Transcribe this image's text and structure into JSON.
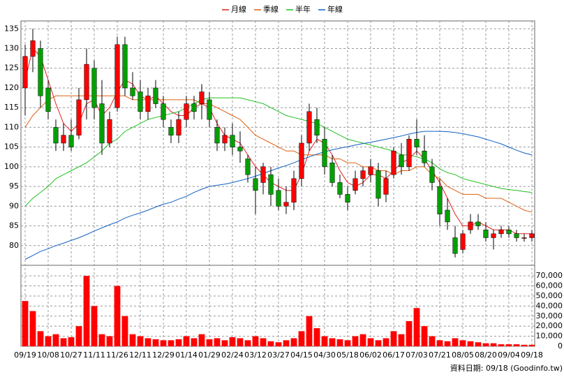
{
  "chart_data": {
    "type": "candlestick",
    "legend": [
      "月線",
      "季線",
      "半年",
      "年線"
    ],
    "categories": [
      "09/19",
      null,
      null,
      "10/08",
      null,
      null,
      "10/27",
      null,
      null,
      "11/11",
      null,
      null,
      "11/26",
      null,
      null,
      "12/11",
      null,
      null,
      "12/29",
      null,
      null,
      "01/14",
      null,
      null,
      "01/29",
      null,
      null,
      "02/24",
      null,
      null,
      "03/12",
      null,
      null,
      "03/27",
      null,
      null,
      "04/15",
      null,
      null,
      "04/30",
      null,
      null,
      "05/18",
      null,
      null,
      "06/02",
      null,
      null,
      "06/17",
      null,
      null,
      "07/03",
      null,
      null,
      "07/21",
      null,
      null,
      "08/05",
      null,
      null,
      "08/20",
      null,
      null,
      "09/04",
      null,
      null,
      "09/18"
    ],
    "candles": {
      "up_color": "#ff0000",
      "down_color": "#00a000",
      "open": [
        120,
        128,
        130,
        120,
        110,
        106,
        108,
        108,
        117,
        125,
        116,
        106,
        115,
        131,
        120,
        119,
        114,
        120,
        116,
        110,
        108,
        112,
        116,
        116,
        117,
        110,
        106,
        108,
        105,
        102,
        97,
        96,
        98,
        94,
        90,
        91,
        97,
        106,
        112,
        107,
        101,
        96,
        93,
        94,
        97,
        98,
        99,
        93,
        98,
        103,
        100,
        107,
        104,
        100,
        95,
        89,
        82,
        79,
        84,
        86,
        84,
        82,
        83,
        84,
        83,
        82,
        82
      ],
      "high": [
        131,
        135,
        132,
        122,
        112,
        111,
        112,
        120,
        130,
        127,
        122,
        114,
        133,
        133,
        124,
        122,
        120,
        122,
        118,
        112,
        114,
        118,
        118,
        121,
        119,
        112,
        110,
        111,
        109,
        103,
        100,
        101,
        100,
        97,
        95,
        99,
        108,
        116,
        115,
        110,
        103,
        98,
        95,
        99,
        100,
        102,
        101,
        99,
        105,
        106,
        108,
        112,
        108,
        102,
        97,
        92,
        85,
        84,
        88,
        88,
        86,
        84,
        85,
        85,
        84,
        83,
        84
      ],
      "low": [
        113,
        124,
        115,
        112,
        104,
        104,
        104,
        107,
        112,
        112,
        103,
        105,
        114,
        118,
        117,
        112,
        112,
        115,
        110,
        106,
        106,
        110,
        112,
        112,
        110,
        104,
        104,
        103,
        101,
        96,
        88,
        93,
        90,
        89,
        88,
        89,
        95,
        104,
        106,
        98,
        95,
        92,
        89,
        93,
        95,
        96,
        90,
        91,
        97,
        98,
        99,
        103,
        100,
        94,
        85,
        84,
        77,
        78,
        83,
        84,
        81,
        79,
        82,
        82,
        81,
        81,
        81
      ],
      "close": [
        128,
        132,
        118,
        114,
        106,
        108,
        105,
        117,
        126,
        115,
        106,
        112,
        131,
        120,
        118,
        114,
        118,
        116,
        112,
        108,
        112,
        116,
        114,
        119,
        112,
        106,
        108,
        105,
        104,
        98,
        94,
        100,
        93,
        90,
        91,
        97,
        106,
        114,
        108,
        100,
        96,
        93,
        91,
        97,
        99,
        100,
        92,
        97,
        104,
        100,
        107,
        105,
        101,
        96,
        88,
        86,
        78,
        83,
        86,
        85,
        82,
        83,
        84,
        83,
        82,
        82,
        83
      ]
    },
    "ylim": [
      75,
      137
    ],
    "yticks": [
      80,
      85,
      90,
      95,
      100,
      105,
      110,
      115,
      120,
      125,
      130,
      135
    ],
    "series": [
      {
        "name": "月線",
        "color": "#e02020",
        "values": [
          122,
          130,
          128,
          122,
          116,
          111,
          109,
          111,
          116,
          117,
          113,
          115,
          119,
          122,
          121,
          118,
          117,
          118,
          116,
          114,
          113,
          113,
          115,
          116,
          115,
          111,
          108,
          107,
          106,
          103,
          100,
          98,
          96,
          95,
          94,
          94,
          98,
          104,
          107,
          106,
          103,
          99,
          96,
          95,
          96,
          98,
          98,
          97,
          99,
          101,
          102,
          104,
          102,
          99,
          96,
          92,
          88,
          85,
          85,
          86,
          85,
          84,
          84,
          84,
          83,
          83,
          83
        ]
      },
      {
        "name": "季線",
        "color": "#e06010",
        "values": [
          110,
          113,
          115,
          117,
          118,
          118,
          118,
          118,
          118,
          118,
          118,
          118,
          118,
          118,
          117,
          117,
          117,
          117,
          117,
          117,
          117,
          117,
          117,
          116,
          116,
          115,
          114,
          113,
          112,
          110,
          108,
          107,
          106,
          105,
          104,
          104,
          103,
          103,
          103,
          103,
          102,
          102,
          101,
          101,
          100,
          100,
          99,
          99,
          98,
          99,
          99,
          100,
          100,
          98,
          97,
          95,
          94,
          93,
          93,
          93,
          92,
          92,
          92,
          91,
          90,
          89,
          88.5
        ]
      },
      {
        "name": "半年",
        "color": "#20c020",
        "values": [
          90,
          92,
          93.5,
          95,
          97,
          98,
          99,
          100,
          101,
          102.5,
          104,
          106,
          107,
          109,
          110,
          111,
          112,
          112.5,
          113,
          113.5,
          114,
          115,
          116,
          117,
          117.5,
          117.5,
          117.5,
          117.5,
          117.5,
          117,
          116.5,
          116,
          115,
          114,
          113,
          112.5,
          112,
          111.5,
          111,
          110,
          109,
          108,
          107,
          106.5,
          106,
          105.5,
          105,
          104.5,
          104,
          103,
          103,
          102.5,
          102,
          101,
          99.5,
          98.5,
          98,
          97,
          96.5,
          96,
          95.5,
          95,
          94.5,
          94.2,
          94,
          93.7,
          93.5
        ]
      },
      {
        "name": "年線",
        "color": "#1060c0",
        "values": [
          76.5,
          77.5,
          78.5,
          79.2,
          80,
          80.6,
          81.3,
          82,
          82.8,
          83.7,
          84.5,
          85.3,
          86,
          87,
          87.7,
          88.3,
          89,
          89.8,
          90.5,
          91,
          91.8,
          92.5,
          93.5,
          94.3,
          95,
          95.3,
          95.6,
          96,
          96.5,
          97,
          97.6,
          98.3,
          99,
          99.7,
          100.3,
          101,
          101.8,
          102.5,
          103.2,
          103.8,
          104.3,
          104.7,
          105.1,
          105.5,
          105.9,
          106.2,
          106.6,
          107,
          107.4,
          107.8,
          108.3,
          108.7,
          109,
          109,
          109,
          108.9,
          108.7,
          108.4,
          108,
          107.6,
          107,
          106.4,
          105.8,
          105,
          104.2,
          103.5,
          103
        ]
      }
    ],
    "volume": {
      "color": "#ff0000",
      "ylim": [
        0,
        80500
      ],
      "yticks": [
        0,
        {
          "value": 10000,
          "label": "10,000"
        },
        {
          "value": 20000,
          "label": "20,000"
        },
        {
          "value": 30000,
          "label": "30,000"
        },
        {
          "value": 40000,
          "label": "40,000"
        },
        {
          "value": 50000,
          "label": "50,000"
        },
        {
          "value": 60000,
          "label": "60,000"
        },
        {
          "value": 70000,
          "label": "70,000"
        }
      ],
      "values": [
        45000,
        35000,
        15000,
        10000,
        12000,
        8000,
        9000,
        20000,
        70000,
        40000,
        12000,
        10000,
        60000,
        30000,
        12000,
        10000,
        8000,
        7000,
        6000,
        6000,
        7000,
        10000,
        8000,
        12000,
        7000,
        8000,
        6000,
        9000,
        8000,
        6000,
        10000,
        8000,
        5000,
        4000,
        6000,
        8000,
        15000,
        30000,
        18000,
        10000,
        8000,
        7000,
        6000,
        10000,
        12000,
        8000,
        6000,
        8000,
        15000,
        12000,
        25000,
        38000,
        20000,
        10000,
        6000,
        5000,
        8000,
        6000,
        5000,
        4000,
        3000,
        3000,
        2000,
        2000,
        2000,
        1500,
        1500
      ]
    },
    "grid": true,
    "footnote": "資料日期: 09/18  (Goodinfo.tw)"
  }
}
